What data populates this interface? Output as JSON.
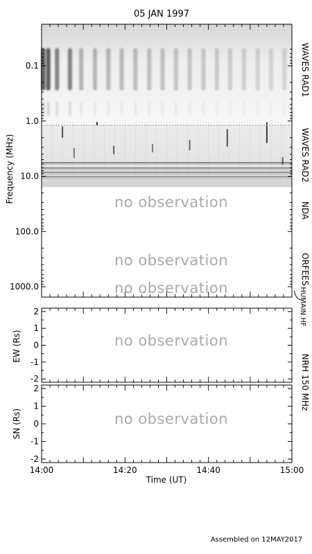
{
  "title": "05 JAN 1997",
  "footer": "Assembled on 12MAY2017",
  "no_observation": "no observation",
  "chart_data": [
    {
      "type": "heatmap",
      "panel": "dynamic-spectrum",
      "ylabel": "Frequency (MHz)",
      "yscale": "log",
      "yreversed": true,
      "ylim": [
        1300,
        0.045
      ],
      "yticks": [
        "0.1",
        "1.0",
        "10.0",
        "100.0",
        "1000.0"
      ],
      "instruments": [
        {
          "name": "WAVES RAD1",
          "freq_range": [
            0.045,
            1.05
          ],
          "observed": true
        },
        {
          "name": "WAVES RAD2",
          "freq_range": [
            1.05,
            14
          ],
          "observed": true
        },
        {
          "name": "NDA",
          "freq_range": [
            14,
            170
          ],
          "observed": false
        },
        {
          "name": "ORFEES",
          "freq_range": [
            170,
            1000
          ],
          "observed": false
        },
        {
          "name": "HUMAIN HF",
          "freq_range": [
            1000,
            1300
          ],
          "observed": false
        }
      ],
      "rad1_bursts_min": [
        0.4,
        1.6,
        3.7,
        6.8,
        9.5,
        12.8,
        16,
        19.2,
        22.5,
        25.8,
        29,
        32.2,
        35.5,
        38.8,
        42,
        45.2,
        48.5,
        51.8,
        55,
        58.2
      ],
      "rad2_bursts": [
        {
          "t": 5.0,
          "f_low": 1.25,
          "f_high": 2.0,
          "intensity": 0.7
        },
        {
          "t": 7.8,
          "f_low": 3.1,
          "f_high": 4.7,
          "intensity": 0.5
        },
        {
          "t": 13.3,
          "f_low": 1.05,
          "f_high": 1.2,
          "intensity": 0.9
        },
        {
          "t": 17.3,
          "f_low": 2.8,
          "f_high": 4.0,
          "intensity": 0.6
        },
        {
          "t": 26.6,
          "f_low": 2.6,
          "f_high": 3.7,
          "intensity": 0.5
        },
        {
          "t": 35.5,
          "f_low": 2.2,
          "f_high": 3.4,
          "intensity": 0.6
        },
        {
          "t": 44.5,
          "f_low": 1.4,
          "f_high": 2.9,
          "intensity": 0.7
        },
        {
          "t": 54.0,
          "f_low": 1.05,
          "f_high": 2.5,
          "intensity": 0.8
        },
        {
          "t": 57.8,
          "f_low": 4.5,
          "f_high": 6.2,
          "intensity": 0.6
        }
      ],
      "rad2_bands_mhz": [
        5.7,
        7.1,
        8.5,
        10.2
      ]
    },
    {
      "type": "scatter",
      "panel": "ew-position",
      "ylabel": "EW (Rs)",
      "ylim": [
        -2.2,
        2.2
      ],
      "yticks": [
        "2",
        "1",
        "0",
        "-1",
        "-2"
      ],
      "instrument": "NRH 150 MHz",
      "observed": false,
      "points": []
    },
    {
      "type": "scatter",
      "panel": "sn-position",
      "ylabel": "SN (Rs)",
      "ylim": [
        -2.2,
        2.2
      ],
      "yticks": [
        "2",
        "1",
        "0",
        "-1",
        "-2"
      ],
      "observed": false,
      "points": []
    }
  ],
  "x_axis": {
    "label": "Time (UT)",
    "range_min": [
      0,
      60
    ],
    "ticks": [
      {
        "min": 0,
        "label": "14:00"
      },
      {
        "min": 20,
        "label": "14:20"
      },
      {
        "min": 40,
        "label": "14:40"
      },
      {
        "min": 60,
        "label": "15:00"
      }
    ]
  }
}
